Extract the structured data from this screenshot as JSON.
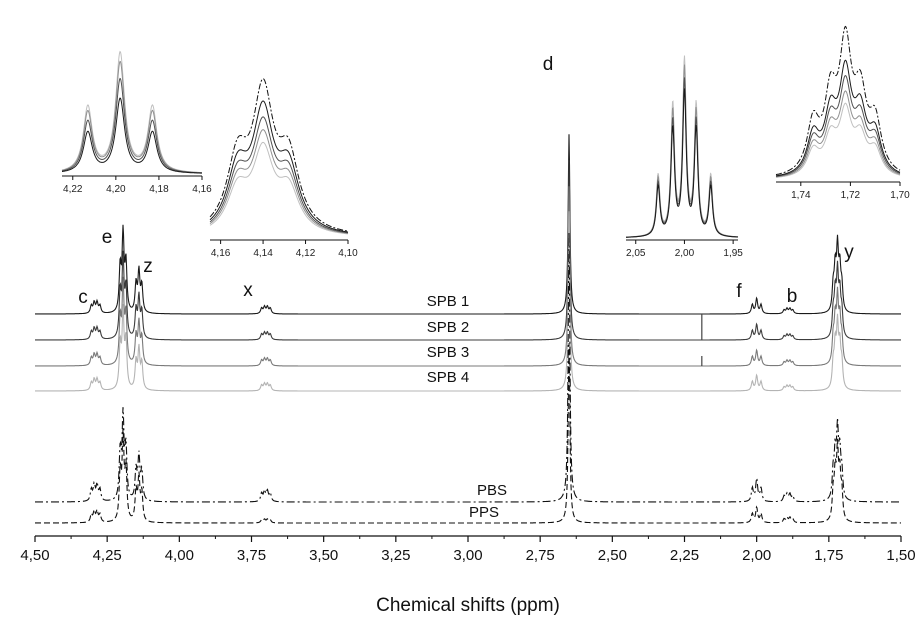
{
  "chart_data": {
    "type": "line",
    "xlabel": "Chemical shifts (ppm)",
    "ylabel": "",
    "xlim": [
      4.5,
      1.5
    ],
    "x_reversed": true,
    "x_ticks": [
      "4,50",
      "4,25",
      "4,00",
      "3,75",
      "3,50",
      "3,25",
      "3,00",
      "2,75",
      "2,50",
      "2,25",
      "2,00",
      "1,75",
      "1,50"
    ],
    "x_tick_values": [
      4.5,
      4.25,
      4.0,
      3.75,
      3.5,
      3.25,
      3.0,
      2.75,
      2.5,
      2.25,
      2.0,
      1.75,
      1.5
    ],
    "series": [
      {
        "name": "SPB 1",
        "color": "#1a1a1a",
        "dash": "none",
        "baseline": 1.0
      },
      {
        "name": "SPB 2",
        "color": "#3c3c3c",
        "dash": "none",
        "baseline": 0.88
      },
      {
        "name": "SPB 3",
        "color": "#7a7a7a",
        "dash": "none",
        "baseline": 0.76
      },
      {
        "name": "SPB 4",
        "color": "#b4b4b4",
        "dash": "none",
        "baseline": 0.64
      },
      {
        "name": "PBS",
        "color": "#111111",
        "dash": "dashdot",
        "baseline": 0.18
      },
      {
        "name": "PPS",
        "color": "#111111",
        "dash": "dash",
        "baseline": 0.08
      }
    ],
    "peaks": [
      {
        "label": "c",
        "x": 4.29
      },
      {
        "label": "e",
        "x": 4.19
      },
      {
        "label": "z",
        "x": 4.14
      },
      {
        "label": "x",
        "x": 3.7
      },
      {
        "label": "d",
        "x": 2.65
      },
      {
        "label": "f",
        "x": 2.0
      },
      {
        "label": "b",
        "x": 1.89
      },
      {
        "label": "y",
        "x": 1.72
      }
    ],
    "insets": [
      {
        "ticks": [
          "4,22",
          "4,20",
          "4,18",
          "4,16"
        ],
        "tick_values": [
          4.22,
          4.2,
          4.18,
          4.16
        ],
        "xlim": [
          4.225,
          4.16
        ]
      },
      {
        "ticks": [
          "4,16",
          "4,14",
          "4,12",
          "4,10"
        ],
        "tick_values": [
          4.16,
          4.14,
          4.12,
          4.1
        ],
        "xlim": [
          4.165,
          4.1
        ]
      },
      {
        "ticks": [
          "2,05",
          "2,00",
          "1,95"
        ],
        "tick_values": [
          2.05,
          2.0,
          1.95
        ],
        "xlim": [
          2.06,
          1.945
        ]
      },
      {
        "ticks": [
          "1,74",
          "1,72",
          "1,70"
        ],
        "tick_values": [
          1.74,
          1.72,
          1.7
        ],
        "xlim": [
          1.75,
          1.7
        ]
      }
    ],
    "grid": false,
    "legend": "inline labels"
  }
}
